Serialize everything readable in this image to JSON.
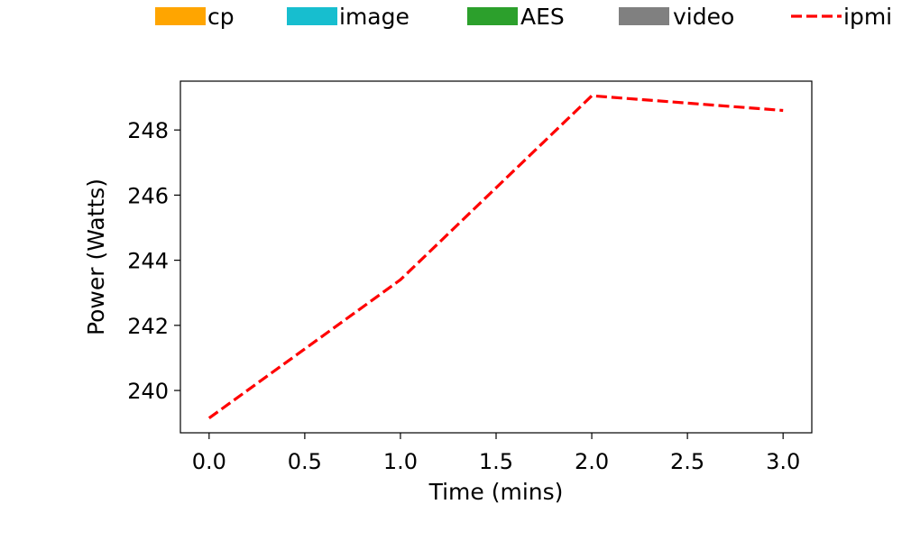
{
  "chart_data": {
    "type": "line",
    "xlabel": "Time (mins)",
    "ylabel": "Power (Watts)",
    "xlim": [
      -0.15,
      3.15
    ],
    "ylim": [
      238.7,
      249.5
    ],
    "xticks": [
      0.0,
      0.5,
      1.0,
      1.5,
      2.0,
      2.5,
      3.0
    ],
    "xtick_labels": [
      "0.0",
      "0.5",
      "1.0",
      "1.5",
      "2.0",
      "2.5",
      "3.0"
    ],
    "yticks": [
      240,
      242,
      244,
      246,
      248
    ],
    "ytick_labels": [
      "240",
      "242",
      "244",
      "246",
      "248"
    ],
    "grid": false,
    "legend": {
      "placement": "top, outside plot area",
      "entries": [
        {
          "label": "cp",
          "color": "#ffa500",
          "marker": "patch"
        },
        {
          "label": "image",
          "color": "#17becf",
          "marker": "patch"
        },
        {
          "label": "AES",
          "color": "#2ca02c",
          "marker": "patch"
        },
        {
          "label": "video",
          "color": "#808080",
          "marker": "patch"
        },
        {
          "label": "ipmi",
          "color": "#ff0000",
          "marker": "dashed-line"
        }
      ]
    },
    "series": [
      {
        "name": "ipmi",
        "color": "#ff0000",
        "style": "dashed",
        "x": [
          0,
          1,
          2,
          3
        ],
        "y": [
          239.15,
          243.4,
          249.05,
          248.6
        ]
      }
    ]
  }
}
